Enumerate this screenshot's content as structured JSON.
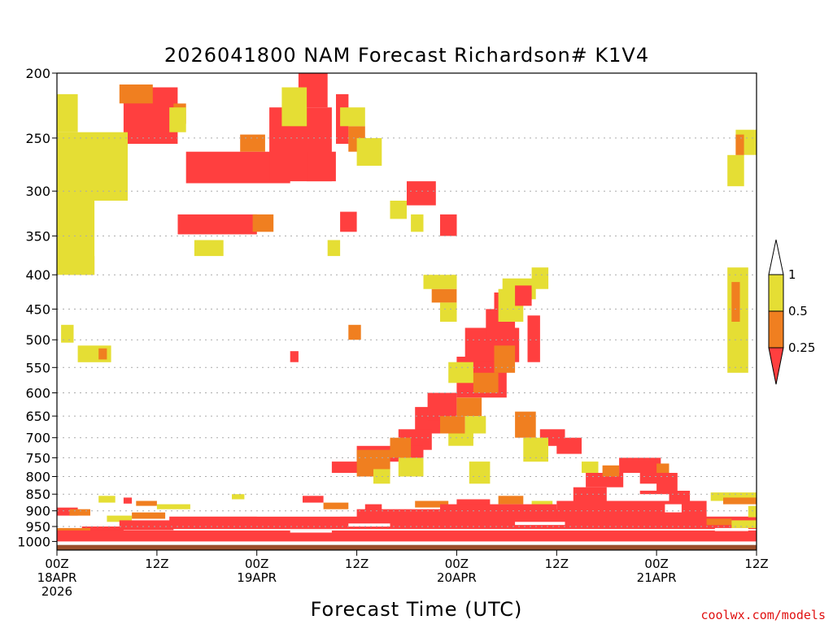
{
  "chart_data": {
    "type": "heatmap",
    "title": "2026041800 NAM Forecast Richardson# K1V4",
    "xlabel": "Forecast Time (UTC)",
    "ylabel": "",
    "credit": "coolwx.com/models",
    "x_range_hours": [
      0,
      84
    ],
    "y_range_hPa": [
      200,
      1030
    ],
    "y_ticks": [
      "200",
      "250",
      "300",
      "350",
      "400",
      "450",
      "500",
      "550",
      "600",
      "650",
      "700",
      "750",
      "800",
      "850",
      "900",
      "950",
      "1000"
    ],
    "x_ticks": [
      {
        "hour": 0,
        "line1": "00Z",
        "line2": "18APR",
        "line3": "2026"
      },
      {
        "hour": 12,
        "line1": "12Z",
        "line2": "",
        "line3": ""
      },
      {
        "hour": 24,
        "line1": "00Z",
        "line2": "19APR",
        "line3": ""
      },
      {
        "hour": 36,
        "line1": "12Z",
        "line2": "",
        "line3": ""
      },
      {
        "hour": 48,
        "line1": "00Z",
        "line2": "20APR",
        "line3": ""
      },
      {
        "hour": 60,
        "line1": "12Z",
        "line2": "",
        "line3": ""
      },
      {
        "hour": 72,
        "line1": "00Z",
        "line2": "21APR",
        "line3": ""
      },
      {
        "hour": 84,
        "line1": "12Z",
        "line2": "",
        "line3": ""
      }
    ],
    "legend": {
      "placement": "right",
      "thresholds": [
        "1",
        "0.5",
        "0.25"
      ],
      "colors": {
        "lt_0_25": "#ff3f3f",
        "0_25_to_0_5": "#f07f20",
        "0_5_to_1": "#e5de34",
        "gt_1": "#ffffff"
      }
    },
    "ground_color": "#9b4f2b",
    "ground_top_hPa": 1012,
    "patches": [
      {
        "band": "lt_0_25",
        "h0": 8.0,
        "h1": 14.5,
        "p0": 210,
        "p1": 255
      },
      {
        "band": "lt_0_25",
        "h0": 15.5,
        "h1": 28.0,
        "p0": 262,
        "p1": 292
      },
      {
        "band": "lt_0_25",
        "h0": 25.5,
        "h1": 33.0,
        "p0": 225,
        "p1": 290
      },
      {
        "band": "lt_0_25",
        "h0": 29.0,
        "h1": 32.5,
        "p0": 200,
        "p1": 225
      },
      {
        "band": "lt_0_25",
        "h0": 14.5,
        "h1": 24.0,
        "p0": 325,
        "p1": 348
      },
      {
        "band": "lt_0_25",
        "h0": 30.0,
        "h1": 33.5,
        "p0": 262,
        "p1": 290
      },
      {
        "band": "lt_0_25",
        "h0": 33.5,
        "h1": 35.0,
        "p0": 215,
        "p1": 255
      },
      {
        "band": "lt_0_25",
        "h0": 34.0,
        "h1": 36.0,
        "p0": 322,
        "p1": 345
      },
      {
        "band": "lt_0_25",
        "h0": 42.0,
        "h1": 45.5,
        "p0": 290,
        "p1": 315
      },
      {
        "band": "lt_0_25",
        "h0": 46.0,
        "h1": 48.0,
        "p0": 325,
        "p1": 350
      },
      {
        "band": "orange",
        "h0": 1.0,
        "h1": 3.5,
        "p0": 270,
        "p1": 290
      },
      {
        "band": "orange",
        "h0": 2.5,
        "h1": 4.5,
        "p0": 248,
        "p1": 265
      },
      {
        "band": "orange",
        "h0": 1.5,
        "h1": 4.5,
        "p0": 375,
        "p1": 400
      },
      {
        "band": "orange",
        "h0": 7.5,
        "h1": 11.5,
        "p0": 208,
        "p1": 222
      },
      {
        "band": "orange",
        "h0": 14.0,
        "h1": 15.5,
        "p0": 222,
        "p1": 238
      },
      {
        "band": "orange",
        "h0": 22.0,
        "h1": 25.0,
        "p0": 247,
        "p1": 262
      },
      {
        "band": "orange",
        "h0": 28.0,
        "h1": 30.0,
        "p0": 225,
        "p1": 240
      },
      {
        "band": "orange",
        "h0": 35.0,
        "h1": 37.0,
        "p0": 240,
        "p1": 262
      },
      {
        "band": "orange",
        "h0": 45.0,
        "h1": 48.0,
        "p0": 420,
        "p1": 440
      },
      {
        "band": "orange",
        "h0": 23.5,
        "h1": 26.0,
        "p0": 325,
        "p1": 345
      },
      {
        "band": "yellow",
        "h0": 0.0,
        "h1": 8.5,
        "p0": 245,
        "p1": 310
      },
      {
        "band": "yellow",
        "h0": 0.0,
        "h1": 4.5,
        "p0": 310,
        "p1": 400
      },
      {
        "band": "yellow",
        "h0": 5.5,
        "h1": 8.0,
        "p0": 255,
        "p1": 300
      },
      {
        "band": "yellow",
        "h0": 0.0,
        "h1": 2.5,
        "p0": 215,
        "p1": 245
      },
      {
        "band": "yellow",
        "h0": 13.5,
        "h1": 15.5,
        "p0": 225,
        "p1": 245
      },
      {
        "band": "yellow",
        "h0": 16.5,
        "h1": 20.0,
        "p0": 355,
        "p1": 375
      },
      {
        "band": "yellow",
        "h0": 27.0,
        "h1": 30.0,
        "p0": 210,
        "p1": 240
      },
      {
        "band": "yellow",
        "h0": 34.0,
        "h1": 37.0,
        "p0": 225,
        "p1": 240
      },
      {
        "band": "yellow",
        "h0": 40.0,
        "h1": 42.0,
        "p0": 310,
        "p1": 330
      },
      {
        "band": "yellow",
        "h0": 32.5,
        "h1": 34.0,
        "p0": 355,
        "p1": 375
      },
      {
        "band": "yellow",
        "h0": 36.0,
        "h1": 39.0,
        "p0": 250,
        "p1": 275
      },
      {
        "band": "yellow",
        "h0": 42.5,
        "h1": 44.0,
        "p0": 325,
        "p1": 345
      },
      {
        "band": "yellow",
        "h0": 44.0,
        "h1": 48.0,
        "p0": 400,
        "p1": 420
      },
      {
        "band": "yellow",
        "h0": 46.0,
        "h1": 48.0,
        "p0": 440,
        "p1": 470
      },
      {
        "band": "yellow",
        "h0": 53.5,
        "h1": 57.5,
        "p0": 405,
        "p1": 435
      },
      {
        "band": "yellow",
        "h0": 80.5,
        "h1": 82.5,
        "p0": 265,
        "p1": 295
      },
      {
        "band": "yellow",
        "h0": 81.5,
        "h1": 84.0,
        "p0": 243,
        "p1": 265
      },
      {
        "band": "orange",
        "h0": 81.5,
        "h1": 82.5,
        "p0": 247,
        "p1": 265
      },
      {
        "band": "yellow",
        "h0": 0.5,
        "h1": 2.0,
        "p0": 475,
        "p1": 505
      },
      {
        "band": "yellow",
        "h0": 2.5,
        "h1": 6.5,
        "p0": 510,
        "p1": 540
      },
      {
        "band": "orange",
        "h0": 5.0,
        "h1": 6.0,
        "p0": 515,
        "p1": 535
      },
      {
        "band": "orange",
        "h0": 35.0,
        "h1": 36.5,
        "p0": 475,
        "p1": 500
      },
      {
        "band": "lt_0_25",
        "h0": 28.0,
        "h1": 29.0,
        "p0": 520,
        "p1": 540
      },
      {
        "band": "yellow",
        "h0": 80.5,
        "h1": 83.0,
        "p0": 390,
        "p1": 560
      },
      {
        "band": "orange",
        "h0": 81.0,
        "h1": 82.0,
        "p0": 410,
        "p1": 470
      },
      {
        "band": "lt_0_25",
        "h0": 48.0,
        "h1": 54.0,
        "p0": 530,
        "p1": 610
      },
      {
        "band": "lt_0_25",
        "h0": 49.0,
        "h1": 55.5,
        "p0": 480,
        "p1": 540
      },
      {
        "band": "lt_0_25",
        "h0": 51.5,
        "h1": 55.0,
        "p0": 450,
        "p1": 500
      },
      {
        "band": "lt_0_25",
        "h0": 52.5,
        "h1": 55.0,
        "p0": 425,
        "p1": 450
      },
      {
        "band": "lt_0_25",
        "h0": 43.0,
        "h1": 47.5,
        "p0": 630,
        "p1": 690
      },
      {
        "band": "lt_0_25",
        "h0": 41.0,
        "h1": 45.0,
        "p0": 680,
        "p1": 730
      },
      {
        "band": "lt_0_25",
        "h0": 36.0,
        "h1": 44.0,
        "p0": 720,
        "p1": 760
      },
      {
        "band": "lt_0_25",
        "h0": 44.5,
        "h1": 48.0,
        "p0": 600,
        "p1": 660
      },
      {
        "band": "lt_0_25",
        "h0": 33.0,
        "h1": 37.0,
        "p0": 760,
        "p1": 790
      },
      {
        "band": "orange",
        "h0": 46.0,
        "h1": 49.0,
        "p0": 650,
        "p1": 690
      },
      {
        "band": "orange",
        "h0": 48.0,
        "h1": 51.0,
        "p0": 610,
        "p1": 650
      },
      {
        "band": "orange",
        "h0": 50.0,
        "h1": 53.0,
        "p0": 560,
        "p1": 600
      },
      {
        "band": "orange",
        "h0": 52.5,
        "h1": 55.0,
        "p0": 510,
        "p1": 560
      },
      {
        "band": "orange",
        "h0": 40.0,
        "h1": 42.5,
        "p0": 700,
        "p1": 750
      },
      {
        "band": "orange",
        "h0": 36.0,
        "h1": 40.0,
        "p0": 730,
        "p1": 800
      },
      {
        "band": "yellow",
        "h0": 47.0,
        "h1": 50.0,
        "p0": 540,
        "p1": 580
      },
      {
        "band": "yellow",
        "h0": 41.0,
        "h1": 44.0,
        "p0": 750,
        "p1": 800
      },
      {
        "band": "yellow",
        "h0": 38.0,
        "h1": 40.0,
        "p0": 780,
        "p1": 820
      },
      {
        "band": "yellow",
        "h0": 47.0,
        "h1": 50.0,
        "p0": 690,
        "p1": 720
      },
      {
        "band": "yellow",
        "h0": 49.0,
        "h1": 51.5,
        "p0": 650,
        "p1": 690
      },
      {
        "band": "yellow",
        "h0": 49.5,
        "h1": 52.0,
        "p0": 760,
        "p1": 820
      },
      {
        "band": "yellow",
        "h0": 53.0,
        "h1": 56.0,
        "p0": 420,
        "p1": 470
      },
      {
        "band": "lt_0_25",
        "h0": 55.0,
        "h1": 57.0,
        "p0": 415,
        "p1": 445
      },
      {
        "band": "lt_0_25",
        "h0": 56.5,
        "h1": 58.0,
        "p0": 460,
        "p1": 540
      },
      {
        "band": "yellow",
        "h0": 57.0,
        "h1": 59.0,
        "p0": 390,
        "p1": 420
      },
      {
        "band": "orange",
        "h0": 55.0,
        "h1": 57.5,
        "p0": 640,
        "p1": 700
      },
      {
        "band": "lt_0_25",
        "h0": 58.0,
        "h1": 61.0,
        "p0": 680,
        "p1": 720
      },
      {
        "band": "lt_0_25",
        "h0": 60.0,
        "h1": 63.0,
        "p0": 700,
        "p1": 740
      },
      {
        "band": "yellow",
        "h0": 56.0,
        "h1": 59.0,
        "p0": 700,
        "p1": 760
      },
      {
        "band": "lt_0_25",
        "h0": 67.5,
        "h1": 72.5,
        "p0": 750,
        "p1": 790
      },
      {
        "band": "lt_0_25",
        "h0": 63.5,
        "h1": 68.0,
        "p0": 790,
        "p1": 830
      },
      {
        "band": "lt_0_25",
        "h0": 70.0,
        "h1": 74.5,
        "p0": 790,
        "p1": 850
      },
      {
        "band": "lt_0_25",
        "h0": 62.0,
        "h1": 66.0,
        "p0": 830,
        "p1": 870
      },
      {
        "band": "lt_0_25",
        "h0": 73.5,
        "h1": 76.0,
        "p0": 840,
        "p1": 880
      },
      {
        "band": "orange",
        "h0": 65.5,
        "h1": 67.5,
        "p0": 770,
        "p1": 800
      },
      {
        "band": "orange",
        "h0": 72.0,
        "h1": 73.5,
        "p0": 765,
        "p1": 790
      },
      {
        "band": "yellow",
        "h0": 63.0,
        "h1": 65.0,
        "p0": 760,
        "p1": 790
      },
      {
        "band": "yellow",
        "h0": 78.5,
        "h1": 84.0,
        "p0": 845,
        "p1": 870
      },
      {
        "band": "orange",
        "h0": 80.0,
        "h1": 84.0,
        "p0": 860,
        "p1": 880
      },
      {
        "band": "lt_0_25",
        "h0": 0.0,
        "h1": 2.5,
        "p0": 890,
        "p1": 915
      },
      {
        "band": "orange",
        "h0": 1.5,
        "h1": 4.0,
        "p0": 895,
        "p1": 915
      },
      {
        "band": "yellow",
        "h0": 5.0,
        "h1": 7.0,
        "p0": 855,
        "p1": 875
      },
      {
        "band": "lt_0_25",
        "h0": 8.0,
        "h1": 9.0,
        "p0": 860,
        "p1": 878
      },
      {
        "band": "orange",
        "h0": 9.5,
        "h1": 12.0,
        "p0": 870,
        "p1": 885
      },
      {
        "band": "yellow",
        "h0": 12.0,
        "h1": 16.0,
        "p0": 880,
        "p1": 895
      },
      {
        "band": "yellow",
        "h0": 21.0,
        "h1": 22.5,
        "p0": 850,
        "p1": 865
      },
      {
        "band": "lt_0_25",
        "h0": 29.5,
        "h1": 32.0,
        "p0": 855,
        "p1": 875
      },
      {
        "band": "orange",
        "h0": 32.0,
        "h1": 35.0,
        "p0": 875,
        "p1": 895
      },
      {
        "band": "lt_0_25",
        "h0": 37.0,
        "h1": 39.0,
        "p0": 880,
        "p1": 900
      },
      {
        "band": "orange",
        "h0": 43.0,
        "h1": 47.0,
        "p0": 870,
        "p1": 890
      },
      {
        "band": "lt_0_25",
        "h0": 48.0,
        "h1": 52.0,
        "p0": 865,
        "p1": 885
      },
      {
        "band": "orange",
        "h0": 53.0,
        "h1": 56.0,
        "p0": 855,
        "p1": 880
      },
      {
        "band": "yellow",
        "h0": 57.0,
        "h1": 59.5,
        "p0": 870,
        "p1": 890
      },
      {
        "band": "yellow",
        "h0": 6.0,
        "h1": 9.0,
        "p0": 915,
        "p1": 935
      },
      {
        "band": "orange",
        "h0": 9.0,
        "h1": 13.0,
        "p0": 905,
        "p1": 925
      },
      {
        "band": "lt_0_25",
        "h0": 13.5,
        "h1": 84.0,
        "p0": 918,
        "p1": 958
      },
      {
        "band": "lt_0_25",
        "h0": 7.5,
        "h1": 14.0,
        "p0": 930,
        "p1": 962
      },
      {
        "band": "lt_0_25",
        "h0": 3.0,
        "h1": 8.0,
        "p0": 950,
        "p1": 968
      },
      {
        "band": "orange",
        "h0": 0.0,
        "h1": 4.0,
        "p0": 955,
        "p1": 968
      },
      {
        "band": "lt_0_25",
        "h0": 0.0,
        "h1": 84.0,
        "p0": 963,
        "p1": 1000
      },
      {
        "band": "lt_0_25",
        "h0": 36.0,
        "h1": 66.0,
        "p0": 895,
        "p1": 925
      },
      {
        "band": "lt_0_25",
        "h0": 46.0,
        "h1": 60.0,
        "p0": 880,
        "p1": 900
      },
      {
        "band": "lt_0_25",
        "h0": 60.0,
        "h1": 78.0,
        "p0": 870,
        "p1": 920
      },
      {
        "band": "orange",
        "h0": 78.0,
        "h1": 81.0,
        "p0": 925,
        "p1": 945
      },
      {
        "band": "yellow",
        "h0": 81.0,
        "h1": 84.0,
        "p0": 930,
        "p1": 955
      },
      {
        "band": "yellow",
        "h0": 83.0,
        "h1": 84.0,
        "p0": 885,
        "p1": 920
      }
    ],
    "whites": [
      {
        "h0": 73.0,
        "h1": 75.0,
        "p0": 880,
        "p1": 905
      },
      {
        "h0": 66.5,
        "h1": 68.5,
        "p0": 835,
        "p1": 855
      },
      {
        "h0": 69.5,
        "h1": 72.0,
        "p0": 820,
        "p1": 840
      },
      {
        "h0": 41.0,
        "h1": 45.0,
        "p0": 805,
        "p1": 825
      },
      {
        "h0": 24.0,
        "h1": 34.0,
        "p0": 909,
        "p1": 918
      },
      {
        "h0": 35.0,
        "h1": 40.0,
        "p0": 940,
        "p1": 950
      },
      {
        "h0": 28.0,
        "h1": 33.0,
        "p0": 963,
        "p1": 970
      },
      {
        "h0": 55.0,
        "h1": 61.0,
        "p0": 935,
        "p1": 945
      },
      {
        "h0": 79.0,
        "h1": 83.0,
        "p0": 955,
        "p1": 965
      }
    ]
  }
}
